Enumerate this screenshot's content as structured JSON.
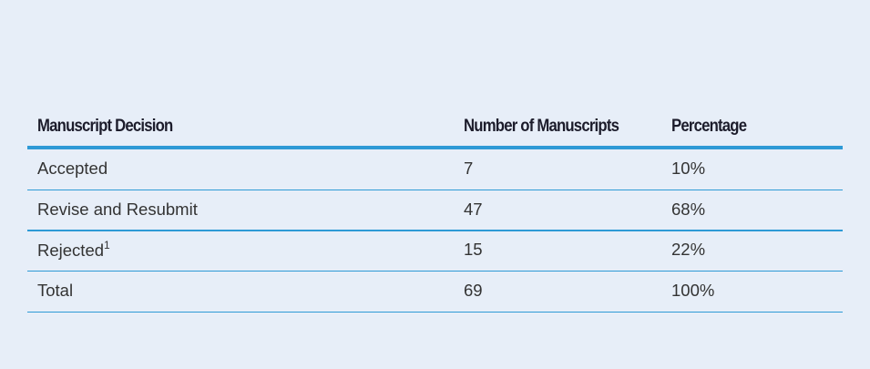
{
  "table": {
    "headers": [
      "Manuscript Decision",
      "Number of Manuscripts",
      "Percentage"
    ],
    "rows": [
      [
        "Accepted",
        "7",
        "10%"
      ],
      [
        "Revise and Resubmit",
        "47",
        "68%"
      ],
      [
        {
          "text": "Rejected",
          "sup": "1"
        },
        "15",
        "22%"
      ],
      [
        "Total",
        "69",
        "100%"
      ]
    ]
  }
}
